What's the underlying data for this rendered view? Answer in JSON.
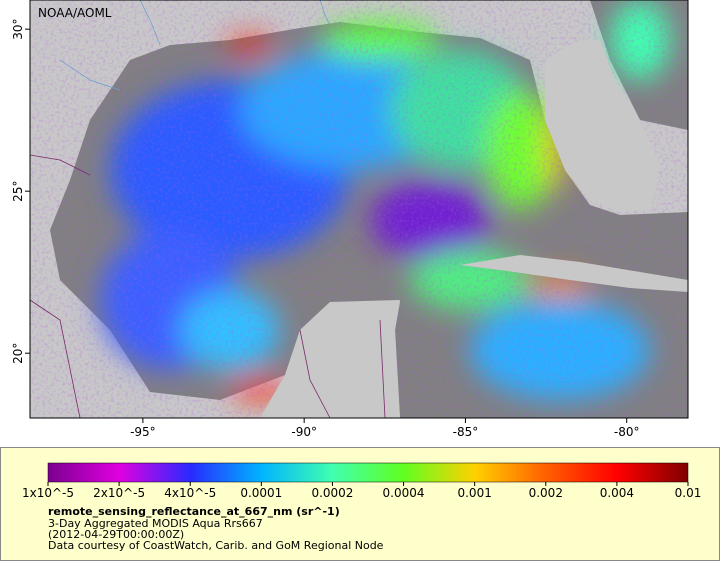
{
  "map": {
    "credit": "NOAA/AOML",
    "xlim": [
      -98.5,
      -78.1
    ],
    "ylim": [
      18,
      30.9
    ],
    "xticks": [
      {
        "value": -95,
        "label": "-95°"
      },
      {
        "value": -90,
        "label": "-90°"
      },
      {
        "value": -85,
        "label": "-85°"
      },
      {
        "value": -80,
        "label": "-80°"
      }
    ],
    "yticks": [
      {
        "value": 20,
        "label": "20°"
      },
      {
        "value": 25,
        "label": "25°"
      },
      {
        "value": 30,
        "label": "30°"
      }
    ]
  },
  "colorbar": {
    "colors": [
      "#7a0090",
      "#e000e0",
      "#2a2aff",
      "#00b4ff",
      "#40ffb0",
      "#60ff20",
      "#ffd000",
      "#ff6000",
      "#ff0000",
      "#800000"
    ],
    "ticks": [
      {
        "value": 1e-05,
        "label": "1x10^-5"
      },
      {
        "value": 2e-05,
        "label": "2x10^-5"
      },
      {
        "value": 4e-05,
        "label": "4x10^-5"
      },
      0.0001,
      0.0002,
      0.0004,
      0.001,
      0.002,
      0.004,
      0.01
    ],
    "title": "remote_sensing_reflectance_at_667_nm (sr^-1)",
    "lines": [
      "3-Day Aggregated MODIS Aqua Rrs667",
      "(2012-04-29T00:00:00Z)",
      "Data courtesy of CoastWatch, Carib. and GoM Regional Node"
    ]
  }
}
